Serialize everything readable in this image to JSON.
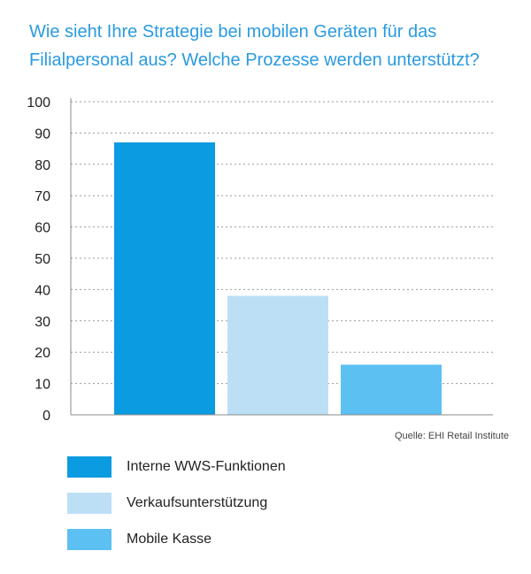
{
  "title_lines": [
    "Wie sieht Ihre Strategie bei mobilen Geräten für das",
    "Filialpersonal aus? Welche Prozesse werden unterstützt?"
  ],
  "source": "Quelle: EHI Retail Institute",
  "colors": {
    "title": "#2a9be0",
    "grid": "#9a9a9a",
    "axis": "#888888"
  },
  "chart_data": {
    "type": "bar",
    "title": "Wie sieht Ihre Strategie bei mobilen Geräten für das Filialpersonal aus? Welche Prozesse werden unterstützt?",
    "ylim": [
      0,
      100
    ],
    "yticks": [
      0,
      10,
      20,
      30,
      40,
      50,
      60,
      70,
      80,
      90,
      100
    ],
    "grid": true,
    "legend_position": "bottom",
    "series": [
      {
        "name": "Interne WWS-Funktionen",
        "value": 87,
        "color": "#0a9be0"
      },
      {
        "name": "Verkaufsunterstützung",
        "value": 38,
        "color": "#bcdff6"
      },
      {
        "name": "Mobile Kasse",
        "value": 16,
        "color": "#5cc0f2"
      }
    ]
  }
}
